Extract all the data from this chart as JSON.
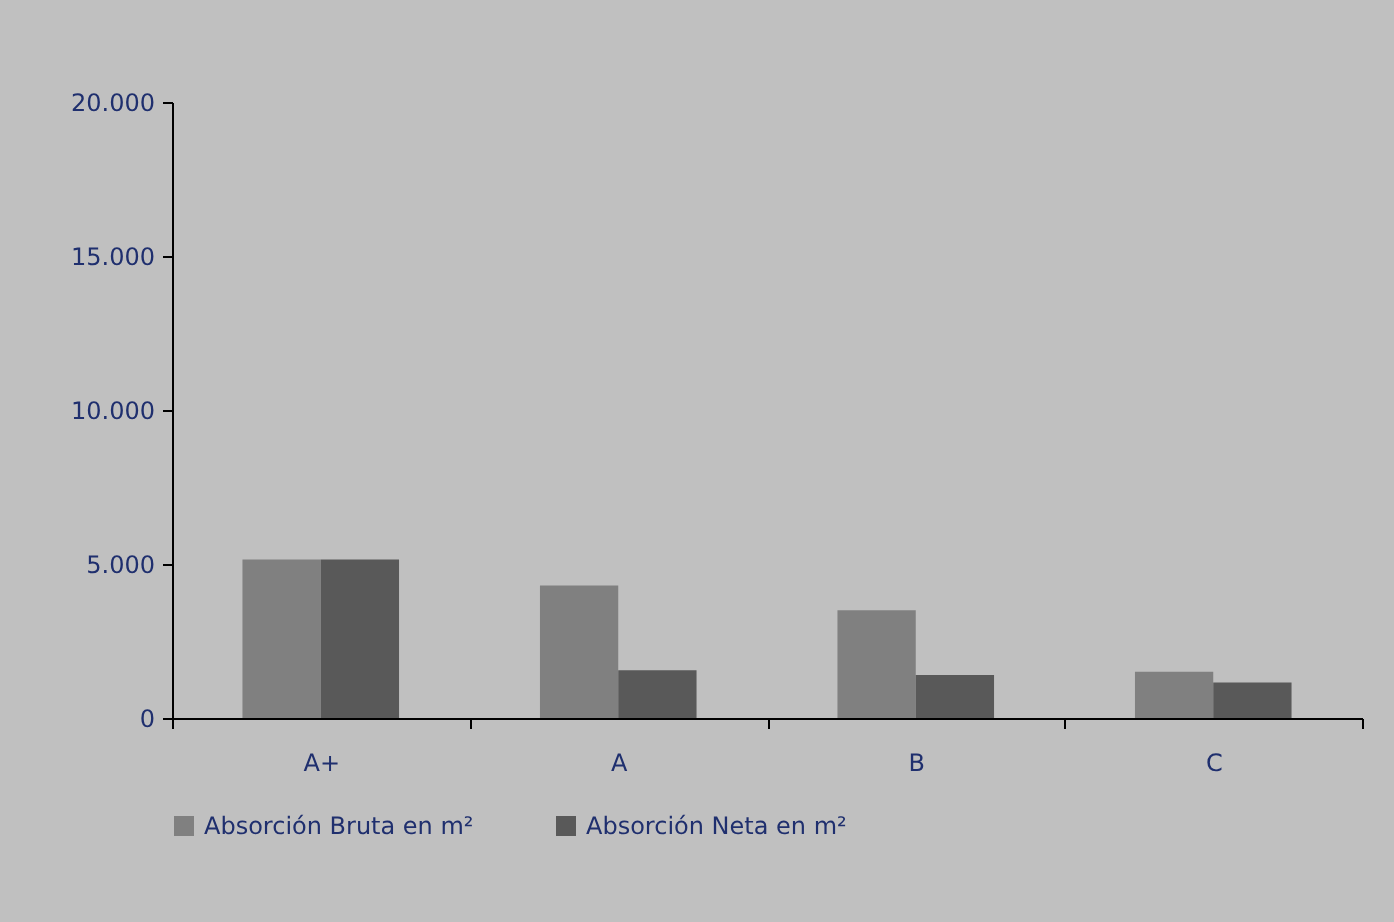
{
  "chart_data": {
    "type": "bar",
    "categories": [
      "A+",
      "A",
      "B",
      "C"
    ],
    "series": [
      {
        "name": "Absorción Bruta en m²",
        "color": "#808080",
        "values": [
          5150,
          4300,
          3500,
          1500
        ]
      },
      {
        "name": "Absorción Neta en m²",
        "color": "#595959",
        "values": [
          5150,
          1550,
          1400,
          1150
        ]
      }
    ],
    "ylim": [
      0,
      20000
    ],
    "yticks": [
      {
        "value": 0,
        "label": "0"
      },
      {
        "value": 5000,
        "label": "5.000"
      },
      {
        "value": 10000,
        "label": "10.000"
      },
      {
        "value": 15000,
        "label": "15.000"
      },
      {
        "value": 20000,
        "label": "20.000"
      }
    ],
    "grid": false,
    "legend": "bottom"
  }
}
